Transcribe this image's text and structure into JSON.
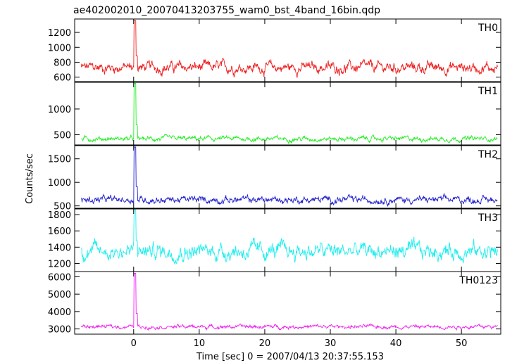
{
  "chart_data": {
    "type": "line",
    "title": "ae402002010_20070413203755_wam0_bst_4band_16bin.qdp",
    "xlabel": "Time [sec] 0 = 2007/04/13 20:37:55.153",
    "ylabel": "Counts/sec",
    "xlim": [
      -9,
      56
    ],
    "x_ticks": [
      0,
      10,
      20,
      30,
      40,
      50
    ],
    "grid": false,
    "panels": [
      {
        "name": "TH0",
        "color": "#ee2222",
        "ylim": [
          540,
          1380
        ],
        "y_ticks": [
          600,
          800,
          1000,
          1200
        ],
        "baseline": 730,
        "noise": 55,
        "peak": 1360
      },
      {
        "name": "TH1",
        "color": "#22ee22",
        "ylim": [
          300,
          1520
        ],
        "y_ticks": [
          500,
          1000
        ],
        "baseline": 420,
        "noise": 35,
        "peak": 1500
      },
      {
        "name": "TH2",
        "color": "#2222cc",
        "ylim": [
          450,
          1780
        ],
        "y_ticks": [
          500,
          1000,
          1500
        ],
        "baseline": 630,
        "noise": 55,
        "peak": 1750
      },
      {
        "name": "TH3",
        "color": "#22eeee",
        "ylim": [
          1100,
          1870
        ],
        "y_ticks": [
          1200,
          1400,
          1600,
          1800
        ],
        "baseline": 1350,
        "noise": 75,
        "peak": 1860
      },
      {
        "name": "TH0123",
        "color": "#ee22ee",
        "ylim": [
          2700,
          6300
        ],
        "y_ticks": [
          3000,
          4000,
          5000,
          6000
        ],
        "baseline": 3130,
        "noise": 80,
        "peak": 6200
      }
    ]
  }
}
